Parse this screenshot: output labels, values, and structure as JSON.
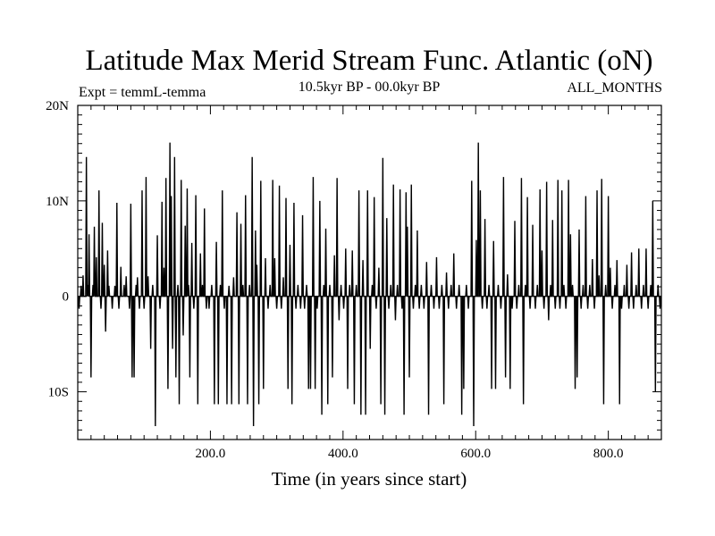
{
  "chart_data": {
    "type": "line",
    "title": "Latitude Max Merid Stream Func. Atlantic (oN)",
    "subtitle_left": "Expt = temmL-temma",
    "subtitle_center": "10.5kyr BP - 00.0kyr BP",
    "subtitle_right": "ALL_MONTHS",
    "xlabel": "Time (in years since start)",
    "ylabel": "",
    "xlim": [
      0,
      880
    ],
    "ylim": [
      -15,
      20
    ],
    "x_ticks": [
      200,
      400,
      600,
      800
    ],
    "x_tick_labels": [
      "200.0",
      "400.0",
      "600.0",
      "800.0"
    ],
    "y_ticks": [
      -10,
      0,
      10,
      20
    ],
    "y_tick_labels": [
      "10S",
      "0",
      "10N",
      "20N"
    ],
    "grid": false,
    "baseline": 0,
    "legend": "none",
    "series": [
      {
        "step": 1,
        "x_start": 1,
        "spikes": [
          [
            2,
            -1.3
          ],
          [
            5,
            1.1
          ],
          [
            8,
            2.2
          ],
          [
            13,
            14.6
          ],
          [
            15,
            1.2
          ],
          [
            17,
            6.5
          ],
          [
            20,
            -8.5
          ],
          [
            23,
            1.2
          ],
          [
            25,
            7.3
          ],
          [
            28,
            4.1
          ],
          [
            32,
            11.1
          ],
          [
            35,
            -1.3
          ],
          [
            37,
            7.7
          ],
          [
            40,
            3.3
          ],
          [
            42,
            -3.7
          ],
          [
            45,
            4.8
          ],
          [
            47,
            1.1
          ],
          [
            52,
            -1.3
          ],
          [
            56,
            1.1
          ],
          [
            59,
            9.8
          ],
          [
            62,
            -1.3
          ],
          [
            65,
            3.1
          ],
          [
            70,
            1.2
          ],
          [
            73,
            2.1
          ],
          [
            78,
            -1.3
          ],
          [
            80,
            9.7
          ],
          [
            82,
            -8.5
          ],
          [
            85,
            -8.5
          ],
          [
            88,
            1.2
          ],
          [
            90,
            2.0
          ],
          [
            93,
            -1.3
          ],
          [
            97,
            11.1
          ],
          [
            100,
            -1.3
          ],
          [
            103,
            12.5
          ],
          [
            106,
            2.1
          ],
          [
            110,
            -5.5
          ],
          [
            113,
            1.2
          ],
          [
            117,
            -13.6
          ],
          [
            120,
            6.4
          ],
          [
            124,
            -1.3
          ],
          [
            127,
            9.9
          ],
          [
            130,
            3.0
          ],
          [
            133,
            12.4
          ],
          [
            136,
            -9.7
          ],
          [
            139,
            16.1
          ],
          [
            141,
            10.5
          ],
          [
            143,
            -5.5
          ],
          [
            146,
            14.6
          ],
          [
            148,
            -8.5
          ],
          [
            151,
            1.2
          ],
          [
            153,
            -11.3
          ],
          [
            156,
            12.2
          ],
          [
            159,
            -4.1
          ],
          [
            162,
            7.4
          ],
          [
            165,
            11.3
          ],
          [
            167,
            1.2
          ],
          [
            169,
            -8.5
          ],
          [
            172,
            5.6
          ],
          [
            175,
            -1.3
          ],
          [
            178,
            10.6
          ],
          [
            181,
            -11.3
          ],
          [
            185,
            4.5
          ],
          [
            188,
            1.2
          ],
          [
            191,
            9.2
          ],
          [
            194,
            -1.3
          ],
          [
            198,
            -1.3
          ],
          [
            202,
            1.2
          ],
          [
            206,
            -11.3
          ],
          [
            209,
            5.7
          ],
          [
            212,
            -11.3
          ],
          [
            215,
            1.2
          ],
          [
            218,
            11.1
          ],
          [
            221,
            -1.3
          ],
          [
            225,
            -11.3
          ],
          [
            228,
            1.1
          ],
          [
            232,
            -11.3
          ],
          [
            235,
            2.0
          ],
          [
            240,
            8.8
          ],
          [
            243,
            -11.3
          ],
          [
            246,
            7.6
          ],
          [
            249,
            1.2
          ],
          [
            253,
            10.6
          ],
          [
            256,
            -11.3
          ],
          [
            259,
            1.2
          ],
          [
            263,
            14.6
          ],
          [
            265,
            -13.6
          ],
          [
            268,
            6.9
          ],
          [
            270,
            3.3
          ],
          [
            273,
            -11.3
          ],
          [
            276,
            12.1
          ],
          [
            280,
            -9.7
          ],
          [
            283,
            4.0
          ],
          [
            287,
            -1.3
          ],
          [
            290,
            1.2
          ],
          [
            294,
            12.2
          ],
          [
            297,
            4.0
          ],
          [
            300,
            -1.3
          ],
          [
            304,
            11.6
          ],
          [
            307,
            -1.3
          ],
          [
            310,
            2.0
          ],
          [
            314,
            10.3
          ],
          [
            317,
            -9.7
          ],
          [
            320,
            5.4
          ],
          [
            323,
            -11.3
          ],
          [
            326,
            9.8
          ],
          [
            329,
            -1.3
          ],
          [
            332,
            1.2
          ],
          [
            336,
            -1.3
          ],
          [
            339,
            8.5
          ],
          [
            342,
            -1.3
          ],
          [
            345,
            1.2
          ],
          [
            348,
            -9.7
          ],
          [
            351,
            -9.7
          ],
          [
            355,
            12.5
          ],
          [
            358,
            -9.7
          ],
          [
            361,
            -1.3
          ],
          [
            365,
            10.0
          ],
          [
            368,
            -12.4
          ],
          [
            371,
            1.2
          ],
          [
            374,
            7.1
          ],
          [
            377,
            -11.3
          ],
          [
            380,
            1.2
          ],
          [
            384,
            -8.5
          ],
          [
            387,
            4.3
          ],
          [
            391,
            12.4
          ],
          [
            394,
            -2.5
          ],
          [
            397,
            1.2
          ],
          [
            401,
            -1.3
          ],
          [
            404,
            5.0
          ],
          [
            407,
            -9.7
          ],
          [
            410,
            1.2
          ],
          [
            414,
            4.8
          ],
          [
            417,
            -11.3
          ],
          [
            420,
            1.2
          ],
          [
            424,
            11.1
          ],
          [
            427,
            -12.4
          ],
          [
            430,
            3.8
          ],
          [
            434,
            -12.4
          ],
          [
            437,
            11.1
          ],
          [
            441,
            -5.5
          ],
          [
            444,
            1.2
          ],
          [
            447,
            10.4
          ],
          [
            450,
            -1.3
          ],
          [
            454,
            3.0
          ],
          [
            457,
            -11.3
          ],
          [
            460,
            14.5
          ],
          [
            463,
            -12.4
          ],
          [
            466,
            8.2
          ],
          [
            469,
            -1.3
          ],
          [
            472,
            1.2
          ],
          [
            476,
            11.7
          ],
          [
            479,
            -2.5
          ],
          [
            482,
            1.2
          ],
          [
            486,
            11.2
          ],
          [
            489,
            -1.3
          ],
          [
            492,
            -12.4
          ],
          [
            495,
            10.9
          ],
          [
            497,
            7.3
          ],
          [
            500,
            -8.5
          ],
          [
            503,
            11.7
          ],
          [
            506,
            -1.3
          ],
          [
            509,
            1.2
          ],
          [
            512,
            6.9
          ],
          [
            515,
            -1.3
          ],
          [
            518,
            1.2
          ],
          [
            522,
            -1.3
          ],
          [
            526,
            3.6
          ],
          [
            529,
            -12.4
          ],
          [
            533,
            1.2
          ],
          [
            537,
            -1.3
          ],
          [
            541,
            4.1
          ],
          [
            545,
            -1.3
          ],
          [
            549,
            1.2
          ],
          [
            552,
            -11.3
          ],
          [
            556,
            2.5
          ],
          [
            559,
            -1.3
          ],
          [
            563,
            1.2
          ],
          [
            567,
            4.5
          ],
          [
            571,
            -1.3
          ],
          [
            575,
            1.2
          ],
          [
            579,
            -12.4
          ],
          [
            582,
            -9.7
          ],
          [
            586,
            1.2
          ],
          [
            589,
            -1.3
          ],
          [
            594,
            12.1
          ],
          [
            597,
            -13.6
          ],
          [
            601,
            5.9
          ],
          [
            604,
            16.1
          ],
          [
            607,
            11.1
          ],
          [
            610,
            -1.3
          ],
          [
            614,
            8.1
          ],
          [
            617,
            -1.3
          ],
          [
            620,
            1.2
          ],
          [
            624,
            -9.7
          ],
          [
            627,
            5.8
          ],
          [
            630,
            -9.7
          ],
          [
            634,
            1.2
          ],
          [
            638,
            -1.3
          ],
          [
            642,
            12.5
          ],
          [
            645,
            -8.5
          ],
          [
            648,
            2.3
          ],
          [
            652,
            -9.7
          ],
          [
            655,
            -1.3
          ],
          [
            659,
            7.9
          ],
          [
            662,
            -1.3
          ],
          [
            665,
            1.2
          ],
          [
            669,
            12.4
          ],
          [
            672,
            -11.3
          ],
          [
            675,
            1.2
          ],
          [
            678,
            10.4
          ],
          [
            682,
            -1.3
          ],
          [
            686,
            7.5
          ],
          [
            690,
            -1.3
          ],
          [
            693,
            1.2
          ],
          [
            697,
            11.2
          ],
          [
            700,
            4.8
          ],
          [
            703,
            -1.3
          ],
          [
            707,
            12.0
          ],
          [
            710,
            -2.5
          ],
          [
            713,
            1.2
          ],
          [
            716,
            8.0
          ],
          [
            720,
            -1.3
          ],
          [
            724,
            12.2
          ],
          [
            727,
            -1.3
          ],
          [
            730,
            11.1
          ],
          [
            733,
            1.2
          ],
          [
            736,
            -1.3
          ],
          [
            740,
            12.2
          ],
          [
            743,
            6.5
          ],
          [
            746,
            1.2
          ],
          [
            750,
            -9.7
          ],
          [
            753,
            -8.5
          ],
          [
            756,
            7.0
          ],
          [
            759,
            -1.3
          ],
          [
            762,
            1.2
          ],
          [
            766,
            10.5
          ],
          [
            769,
            -1.3
          ],
          [
            772,
            1.2
          ],
          [
            776,
            3.9
          ],
          [
            779,
            -1.3
          ],
          [
            783,
            11.1
          ],
          [
            786,
            2.2
          ],
          [
            790,
            12.3
          ],
          [
            793,
            -11.3
          ],
          [
            796,
            1.2
          ],
          [
            800,
            10.5
          ],
          [
            803,
            3.0
          ],
          [
            806,
            -1.3
          ],
          [
            810,
            1.2
          ],
          [
            813,
            3.8
          ],
          [
            817,
            -11.3
          ],
          [
            820,
            -1.3
          ],
          [
            824,
            1.2
          ],
          [
            828,
            3.3
          ],
          [
            831,
            -1.3
          ],
          [
            835,
            4.6
          ],
          [
            838,
            -1.3
          ],
          [
            842,
            1.2
          ],
          [
            846,
            5.0
          ],
          [
            850,
            -1.3
          ],
          [
            853,
            1.2
          ],
          [
            857,
            5.0
          ],
          [
            860,
            -1.3
          ],
          [
            864,
            1.2
          ],
          [
            867,
            10.0
          ],
          [
            871,
            -10.0
          ],
          [
            875,
            1.2
          ],
          [
            878,
            -1.3
          ]
        ]
      }
    ]
  },
  "style": {
    "line_color": "#000000",
    "axis_color": "#000000",
    "background": "#ffffff"
  }
}
